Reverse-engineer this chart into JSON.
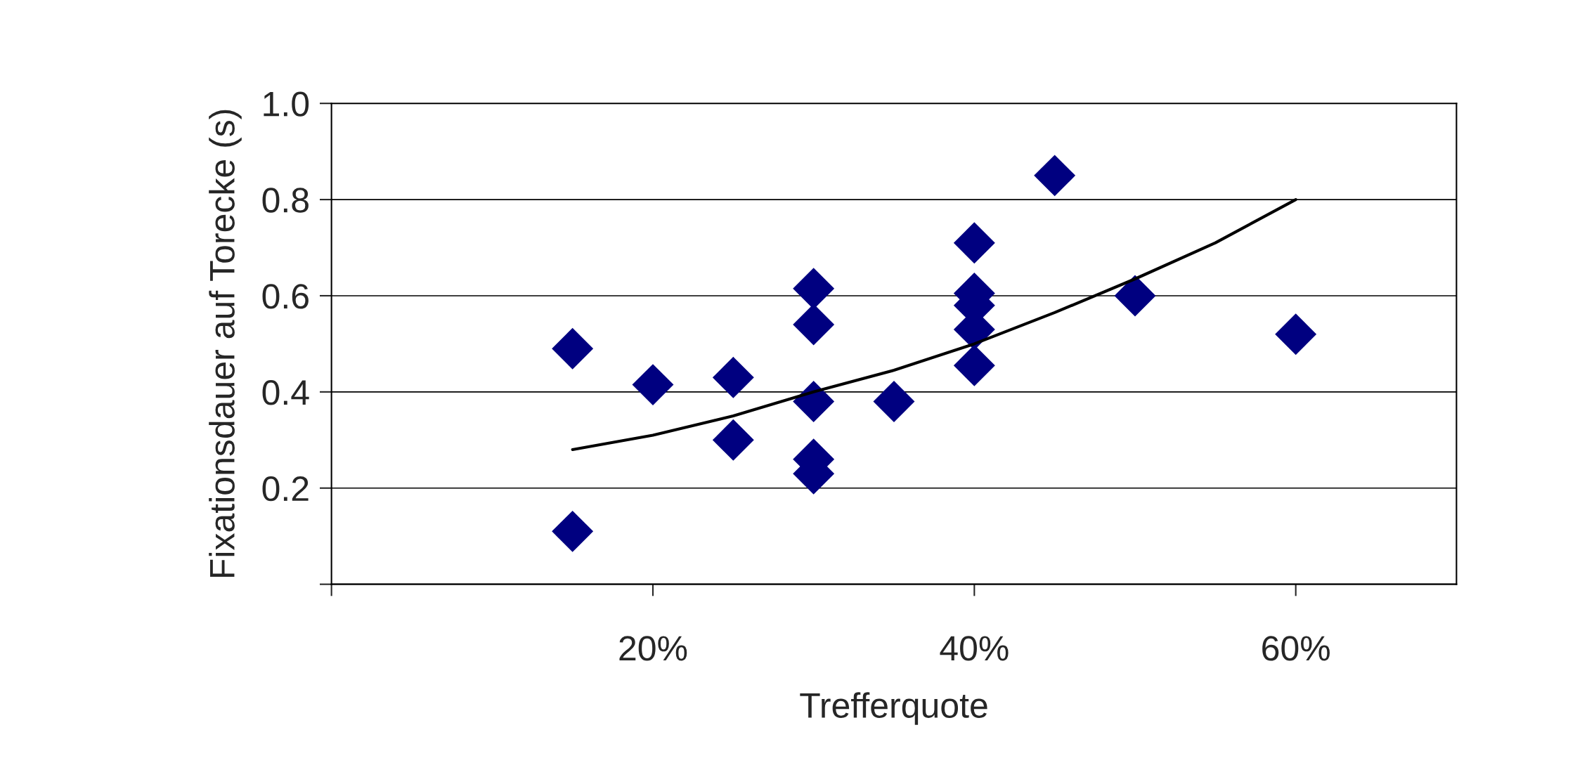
{
  "chart_data": {
    "type": "scatter",
    "xlabel": "Trefferquote",
    "ylabel": "Fixationsdauer auf Torecke (s)",
    "xlim": [
      0,
      70
    ],
    "xticks": [
      {
        "value": 0,
        "label": null
      },
      {
        "value": 20,
        "label": "20%"
      },
      {
        "value": 40,
        "label": "40%"
      },
      {
        "value": 60,
        "label": "60%"
      }
    ],
    "ylim": [
      0,
      1.0
    ],
    "yticks": [
      {
        "value": 0,
        "label": null
      },
      {
        "value": 0.2,
        "label": "0.2"
      },
      {
        "value": 0.4,
        "label": "0.4"
      },
      {
        "value": 0.6,
        "label": "0.6"
      },
      {
        "value": 0.8,
        "label": "0.8"
      },
      {
        "value": 1.0,
        "label": "1.0"
      }
    ],
    "grid": "y",
    "legend": false,
    "series": [
      {
        "color": "#000080",
        "marker": "diamond",
        "x": [
          15,
          15,
          20,
          25,
          25,
          30,
          30,
          30,
          30,
          30,
          35,
          40,
          40,
          40,
          40,
          40,
          45,
          50,
          60
        ],
        "values": [
          0.49,
          0.11,
          0.415,
          0.43,
          0.3,
          0.615,
          0.54,
          0.38,
          0.26,
          0.23,
          0.38,
          0.71,
          0.605,
          0.58,
          0.53,
          0.455,
          0.85,
          0.6,
          0.52
        ]
      },
      {
        "type": "line",
        "color": "#000000",
        "marker": "none",
        "line_style": "solid",
        "x": [
          15,
          20,
          25,
          30,
          35,
          40,
          45,
          50,
          55,
          60
        ],
        "values": [
          0.28,
          0.31,
          0.35,
          0.4,
          0.445,
          0.5,
          0.565,
          0.635,
          0.71,
          0.8
        ]
      }
    ]
  }
}
